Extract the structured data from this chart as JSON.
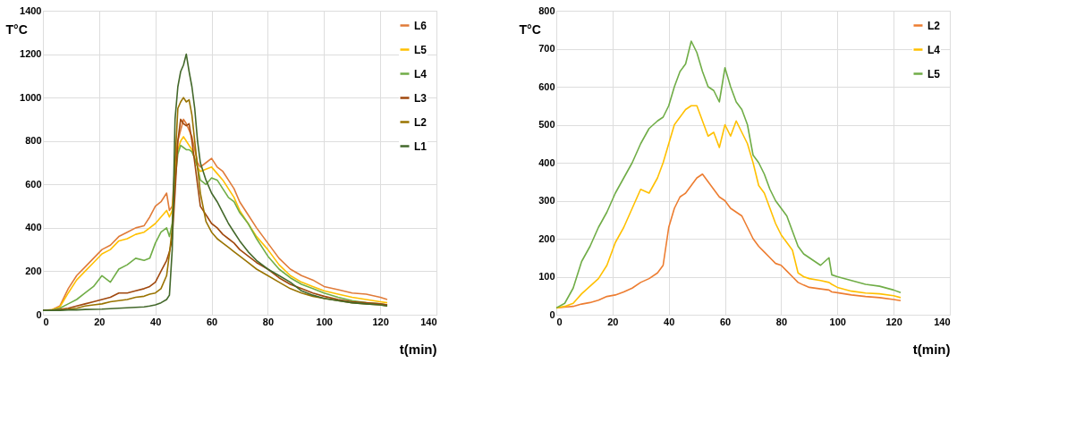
{
  "chart_data": [
    {
      "type": "line",
      "xlabel": "t(min)",
      "ylabel": "T°C",
      "xlim": [
        0,
        140
      ],
      "xticks": [
        0,
        20,
        40,
        60,
        80,
        100,
        120,
        140
      ],
      "ylim": [
        0,
        1400
      ],
      "yticks": [
        0,
        200,
        400,
        600,
        800,
        1000,
        1200,
        1400
      ],
      "grid": true,
      "legend": "top right",
      "x": [
        0,
        3,
        6,
        9,
        12,
        15,
        18,
        21,
        24,
        27,
        30,
        33,
        36,
        38,
        40,
        42,
        44,
        45,
        46,
        47,
        48,
        49,
        50,
        51,
        52,
        53,
        54,
        55,
        56,
        58,
        60,
        62,
        64,
        66,
        68,
        70,
        73,
        76,
        80,
        84,
        88,
        92,
        96,
        100,
        105,
        110,
        115,
        120,
        122.5
      ],
      "series": [
        {
          "name": "L6",
          "color": "#e07b39",
          "values": [
            20,
            22,
            40,
            120,
            180,
            220,
            260,
            300,
            320,
            360,
            380,
            400,
            410,
            450,
            500,
            520,
            560,
            480,
            500,
            700,
            800,
            850,
            900,
            880,
            850,
            820,
            760,
            700,
            680,
            700,
            720,
            680,
            660,
            620,
            580,
            520,
            460,
            400,
            330,
            260,
            210,
            180,
            160,
            130,
            115,
            100,
            95,
            80,
            70
          ]
        },
        {
          "name": "L5",
          "color": "#ffc000",
          "values": [
            20,
            22,
            35,
            100,
            160,
            200,
            240,
            280,
            300,
            340,
            350,
            370,
            380,
            400,
            420,
            450,
            480,
            450,
            480,
            650,
            760,
            800,
            820,
            800,
            780,
            760,
            720,
            680,
            660,
            670,
            680,
            650,
            620,
            580,
            540,
            480,
            420,
            360,
            300,
            230,
            180,
            150,
            130,
            110,
            95,
            80,
            70,
            60,
            55
          ]
        },
        {
          "name": "L4",
          "color": "#70ad47",
          "values": [
            20,
            20,
            30,
            50,
            70,
            100,
            130,
            180,
            150,
            210,
            230,
            260,
            250,
            260,
            330,
            380,
            400,
            360,
            420,
            620,
            740,
            780,
            770,
            760,
            760,
            750,
            720,
            680,
            620,
            600,
            630,
            620,
            580,
            540,
            520,
            470,
            420,
            350,
            270,
            210,
            170,
            140,
            120,
            100,
            80,
            65,
            55,
            50,
            45
          ]
        },
        {
          "name": "L3",
          "color": "#a0480e",
          "values": [
            20,
            20,
            25,
            30,
            40,
            50,
            60,
            70,
            80,
            100,
            100,
            110,
            120,
            130,
            150,
            200,
            250,
            290,
            350,
            560,
            800,
            900,
            880,
            870,
            880,
            800,
            700,
            600,
            500,
            460,
            420,
            400,
            370,
            350,
            330,
            300,
            270,
            240,
            210,
            170,
            140,
            120,
            100,
            85,
            70,
            60,
            55,
            50,
            45
          ]
        },
        {
          "name": "L2",
          "color": "#997300",
          "values": [
            20,
            20,
            22,
            25,
            30,
            40,
            45,
            50,
            60,
            65,
            70,
            80,
            85,
            95,
            100,
            120,
            180,
            280,
            400,
            700,
            950,
            980,
            1000,
            980,
            990,
            920,
            800,
            680,
            560,
            430,
            380,
            350,
            330,
            310,
            290,
            270,
            240,
            210,
            180,
            150,
            120,
            100,
            85,
            75,
            65,
            55,
            50,
            45,
            40
          ]
        },
        {
          "name": "L1",
          "color": "#43682b",
          "values": [
            20,
            20,
            20,
            22,
            22,
            24,
            25,
            26,
            28,
            30,
            32,
            34,
            36,
            40,
            45,
            55,
            70,
            90,
            300,
            900,
            1050,
            1120,
            1150,
            1200,
            1120,
            1050,
            950,
            800,
            700,
            620,
            560,
            520,
            470,
            420,
            380,
            340,
            290,
            250,
            210,
            180,
            150,
            110,
            90,
            75,
            65,
            55,
            50,
            45,
            40
          ]
        }
      ]
    },
    {
      "type": "line",
      "xlabel": "t(min)",
      "ylabel": "T°C",
      "xlim": [
        0,
        140
      ],
      "xticks": [
        0,
        20,
        40,
        60,
        80,
        100,
        120,
        140
      ],
      "ylim": [
        0,
        800
      ],
      "yticks": [
        0,
        100,
        200,
        300,
        400,
        500,
        600,
        700,
        800
      ],
      "grid": true,
      "legend": "top right",
      "x": [
        0,
        3,
        6,
        9,
        12,
        15,
        18,
        21,
        24,
        27,
        30,
        33,
        36,
        38,
        40,
        42,
        44,
        46,
        48,
        50,
        52,
        54,
        56,
        58,
        60,
        62,
        64,
        66,
        68,
        70,
        72,
        74,
        76,
        78,
        80,
        82,
        84,
        86,
        88,
        90,
        94,
        97,
        98,
        100,
        105,
        110,
        115,
        120,
        122.5
      ],
      "series": [
        {
          "name": "L2",
          "color": "#ed7d31",
          "values": [
            18,
            20,
            22,
            28,
            32,
            38,
            48,
            52,
            60,
            70,
            85,
            95,
            110,
            130,
            230,
            280,
            310,
            320,
            340,
            360,
            370,
            350,
            330,
            310,
            300,
            280,
            270,
            260,
            230,
            200,
            180,
            165,
            150,
            135,
            130,
            115,
            100,
            85,
            78,
            72,
            68,
            65,
            60,
            58,
            52,
            48,
            45,
            40,
            37
          ]
        },
        {
          "name": "L4",
          "color": "#ffc000",
          "values": [
            18,
            22,
            30,
            55,
            75,
            95,
            130,
            190,
            230,
            280,
            330,
            320,
            360,
            400,
            450,
            500,
            520,
            540,
            550,
            550,
            510,
            470,
            480,
            440,
            500,
            470,
            510,
            480,
            450,
            400,
            340,
            320,
            280,
            240,
            210,
            190,
            170,
            110,
            100,
            95,
            90,
            85,
            80,
            72,
            62,
            57,
            55,
            50,
            45
          ]
        },
        {
          "name": "L5",
          "color": "#70ad47",
          "values": [
            18,
            30,
            70,
            140,
            180,
            230,
            270,
            320,
            360,
            400,
            450,
            490,
            510,
            520,
            550,
            600,
            640,
            660,
            720,
            690,
            640,
            600,
            590,
            560,
            650,
            600,
            560,
            540,
            500,
            420,
            400,
            370,
            330,
            300,
            280,
            260,
            220,
            180,
            160,
            150,
            130,
            150,
            105,
            100,
            90,
            80,
            75,
            65,
            58
          ]
        }
      ]
    }
  ]
}
